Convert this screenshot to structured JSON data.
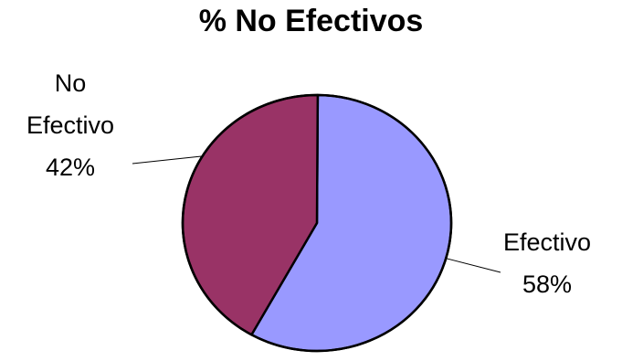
{
  "chart_data": {
    "type": "pie",
    "title": "% No Efectivos",
    "slices": [
      {
        "label": "Efectivo",
        "value": 58,
        "value_label": "58%",
        "color": "#9999FF"
      },
      {
        "label_lines": [
          "No",
          "Efectivo"
        ],
        "label": "No Efectivo",
        "value": 42,
        "value_label": "42%",
        "color": "#993366"
      }
    ],
    "legend": "none"
  }
}
